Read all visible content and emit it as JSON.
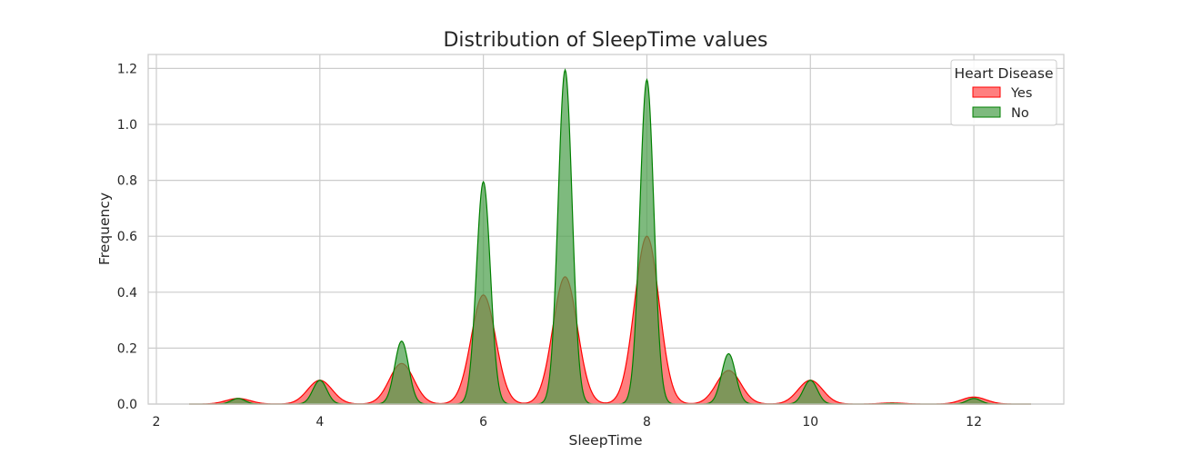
{
  "chart_data": {
    "type": "area",
    "title": "Distribution of SleepTime values",
    "xlabel": "SleepTime",
    "ylabel": "Frequency",
    "xlim": [
      1.9,
      13.1
    ],
    "ylim": [
      0,
      1.25
    ],
    "x_ticks": [
      2,
      4,
      6,
      8,
      10,
      12
    ],
    "y_ticks": [
      0.0,
      0.2,
      0.4,
      0.6,
      0.8,
      1.0,
      1.2
    ],
    "grid": true,
    "legend": {
      "title": "Heart Disease",
      "placement": "top-right"
    },
    "series": [
      {
        "name": "Yes",
        "color": "#ff0000",
        "fill": "#ff7f7f",
        "peaks": [
          {
            "x": 3,
            "y": 0.02
          },
          {
            "x": 4,
            "y": 0.085
          },
          {
            "x": 5,
            "y": 0.145
          },
          {
            "x": 6,
            "y": 0.39
          },
          {
            "x": 7,
            "y": 0.455
          },
          {
            "x": 8,
            "y": 0.6
          },
          {
            "x": 9,
            "y": 0.12
          },
          {
            "x": 10,
            "y": 0.085
          },
          {
            "x": 11,
            "y": 0.004
          },
          {
            "x": 12,
            "y": 0.025
          }
        ]
      },
      {
        "name": "No",
        "color": "#008000",
        "fill": "#4c9f4c",
        "peaks": [
          {
            "x": 3,
            "y": 0.02
          },
          {
            "x": 4,
            "y": 0.085
          },
          {
            "x": 5,
            "y": 0.225
          },
          {
            "x": 6,
            "y": 0.795
          },
          {
            "x": 7,
            "y": 1.195
          },
          {
            "x": 8,
            "y": 1.16
          },
          {
            "x": 9,
            "y": 0.18
          },
          {
            "x": 10,
            "y": 0.085
          },
          {
            "x": 11,
            "y": 0.002
          },
          {
            "x": 12,
            "y": 0.02
          }
        ]
      }
    ]
  }
}
